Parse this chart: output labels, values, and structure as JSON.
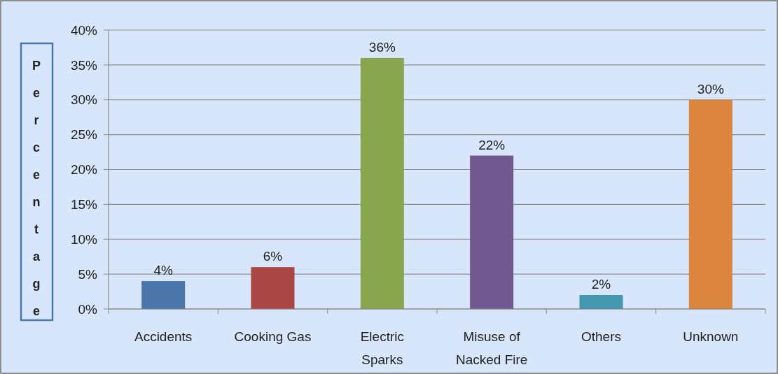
{
  "chart_data": {
    "type": "bar",
    "ylabel": "Percentage",
    "categories": [
      "Accidents",
      "Cooking Gas",
      "Electric Sparks",
      "Misuse of Nacked Fire",
      "Others",
      "Unknown"
    ],
    "values": [
      4,
      6,
      36,
      22,
      2,
      30
    ],
    "colors": [
      "#4a76aa",
      "#aa4643",
      "#89a54e",
      "#71588f",
      "#4198af",
      "#db843d"
    ],
    "value_labels": [
      "4%",
      "6%",
      "36%",
      "22%",
      "2%",
      "30%"
    ],
    "ylim": [
      0,
      40
    ],
    "yticks": [
      {
        "value": 0,
        "label": "0%"
      },
      {
        "value": 5,
        "label": "5%"
      },
      {
        "value": 10,
        "label": "10%"
      },
      {
        "value": 15,
        "label": "15%"
      },
      {
        "value": 20,
        "label": "20%"
      },
      {
        "value": 25,
        "label": "25%"
      },
      {
        "value": 30,
        "label": "30%"
      },
      {
        "value": 35,
        "label": "35%"
      },
      {
        "value": 40,
        "label": "40%"
      }
    ],
    "grid": "y"
  }
}
